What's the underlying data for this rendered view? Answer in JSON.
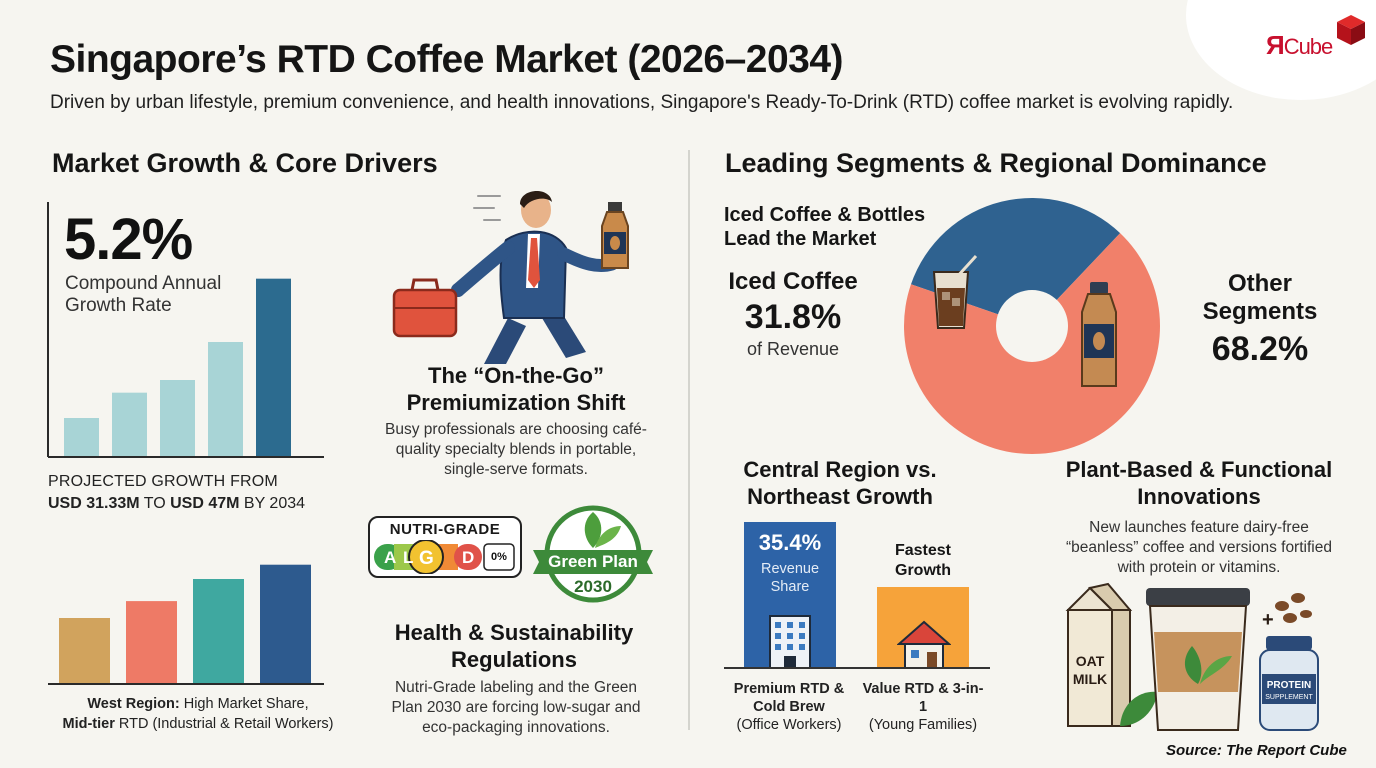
{
  "brand": {
    "logo_text": "ЯCube",
    "logo_prefix": "Я",
    "logo_suffix": "Cube",
    "color": "#c8102e"
  },
  "header": {
    "title": "Singapore’s RTD Coffee Market (2026–2034)",
    "subtitle": "Driven by urban lifestyle, premium convenience, and health innovations, Singapore's Ready-To-Drink (RTD) coffee market is evolving rapidly."
  },
  "left_section": {
    "title": "Market Growth & Core Drivers",
    "kpi_value": "5.2%",
    "kpi_label": "Compound Annual Growth Rate",
    "projection_line1": "PROJECTED GROWTH FROM",
    "projection_from_value": "USD 31.33M",
    "projection_to": " TO ",
    "projection_to_value": "USD 47M",
    "projection_year": " BY 2034",
    "west_bold": "West Region:",
    "west_text": " High Market Share,",
    "midtier_bold": "Mid-tier",
    "midtier_text": " RTD (Industrial & Retail Workers)"
  },
  "middle_section": {
    "premium_title": "The “On-the-Go” Premiumization Shift",
    "premium_body": "Busy professionals are choosing café-quality specialty blends in portable, single-serve formats.",
    "nutri_title": "NUTRI-GRADE",
    "nutri_grades": [
      "A",
      "L",
      "G",
      "D"
    ],
    "green_plan_line1": "Green Plan",
    "green_plan_line2": "2030",
    "health_title": "Health & Sustainability Regulations",
    "health_body": "Nutri-Grade labeling and the Green Plan 2030 are forcing low-sugar and eco-packaging innovations."
  },
  "right_section": {
    "title": "Leading Segments & Regional Dominance",
    "iced_head": "Iced Coffee & Bottles Lead the Market",
    "iced_name": "Iced Coffee",
    "iced_pct": "31.8%",
    "iced_sub": "of Revenue",
    "other_name": "Other Segments",
    "other_pct": "68.2%",
    "region_title": "Central Region vs. Northeast Growth",
    "central_pct": "35.4%",
    "central_label": "Revenue Share",
    "fastest_label": "Fastest Growth",
    "central_tag_bold": "Premium RTD & Cold Brew",
    "central_tag_sub": "(Office Workers)",
    "northeast_tag_bold": "Value RTD & 3-in-1",
    "northeast_tag_sub": "(Young Families)",
    "plant_title": "Plant-Based & Functional Innovations",
    "plant_body": "New launches feature dairy-free “beanless” coffee and versions fortified with protein or vitamins.",
    "oat_label": "OAT MILK",
    "protein_label": "PROTEIN",
    "supplement_label": "SUPPLEMENT",
    "plus_sign": "+"
  },
  "footer": {
    "source": "Source: The Report Cube"
  },
  "colors": {
    "bar_light": "#a8d4d6",
    "bar_dark": "#2c6b8f",
    "pie_iced": "#2f6290",
    "pie_other": "#f1806a",
    "west_mustard": "#d1a35d",
    "west_coral": "#ee7a66",
    "west_teal": "#3fa8a0",
    "west_navy": "#2d5a8e",
    "central_blue": "#2d63a7",
    "northeast_orange": "#f6a33a"
  },
  "icons": [
    "businessman-icon",
    "briefcase-icon",
    "coffee-bottle-icon",
    "iced-coffee-icon",
    "office-building-icon",
    "house-icon",
    "leaf-icon",
    "oat-milk-icon",
    "coffee-cup-icon",
    "protein-jar-icon",
    "coffee-beans-icon"
  ],
  "chart_data": [
    {
      "type": "bar",
      "description_role": "growth trend bars (no axis labels printed)",
      "values": [
        3,
        5,
        6,
        9,
        14
      ],
      "colors": [
        "#a8d4d6",
        "#a8d4d6",
        "#a8d4d6",
        "#a8d4d6",
        "#2c6b8f"
      ],
      "ylim": [
        0,
        15
      ]
    },
    {
      "type": "bar",
      "description_role": "west region bars (no axis labels printed)",
      "values": [
        5,
        6.3,
        8,
        9.1
      ],
      "colors": [
        "#d1a35d",
        "#ee7a66",
        "#3fa8a0",
        "#2d5a8e"
      ],
      "ylim": [
        0,
        10
      ]
    },
    {
      "type": "pie",
      "donut": true,
      "categories": [
        "Iced Coffee",
        "Other Segments"
      ],
      "values": [
        31.8,
        68.2
      ],
      "colors": [
        "#2f6290",
        "#f1806a"
      ]
    },
    {
      "type": "bar",
      "categories": [
        "Central",
        "Northeast"
      ],
      "values": [
        35.4,
        19.6
      ],
      "colors": [
        "#2d63a7",
        "#f6a33a"
      ],
      "ylim": [
        0,
        35.4
      ]
    }
  ]
}
